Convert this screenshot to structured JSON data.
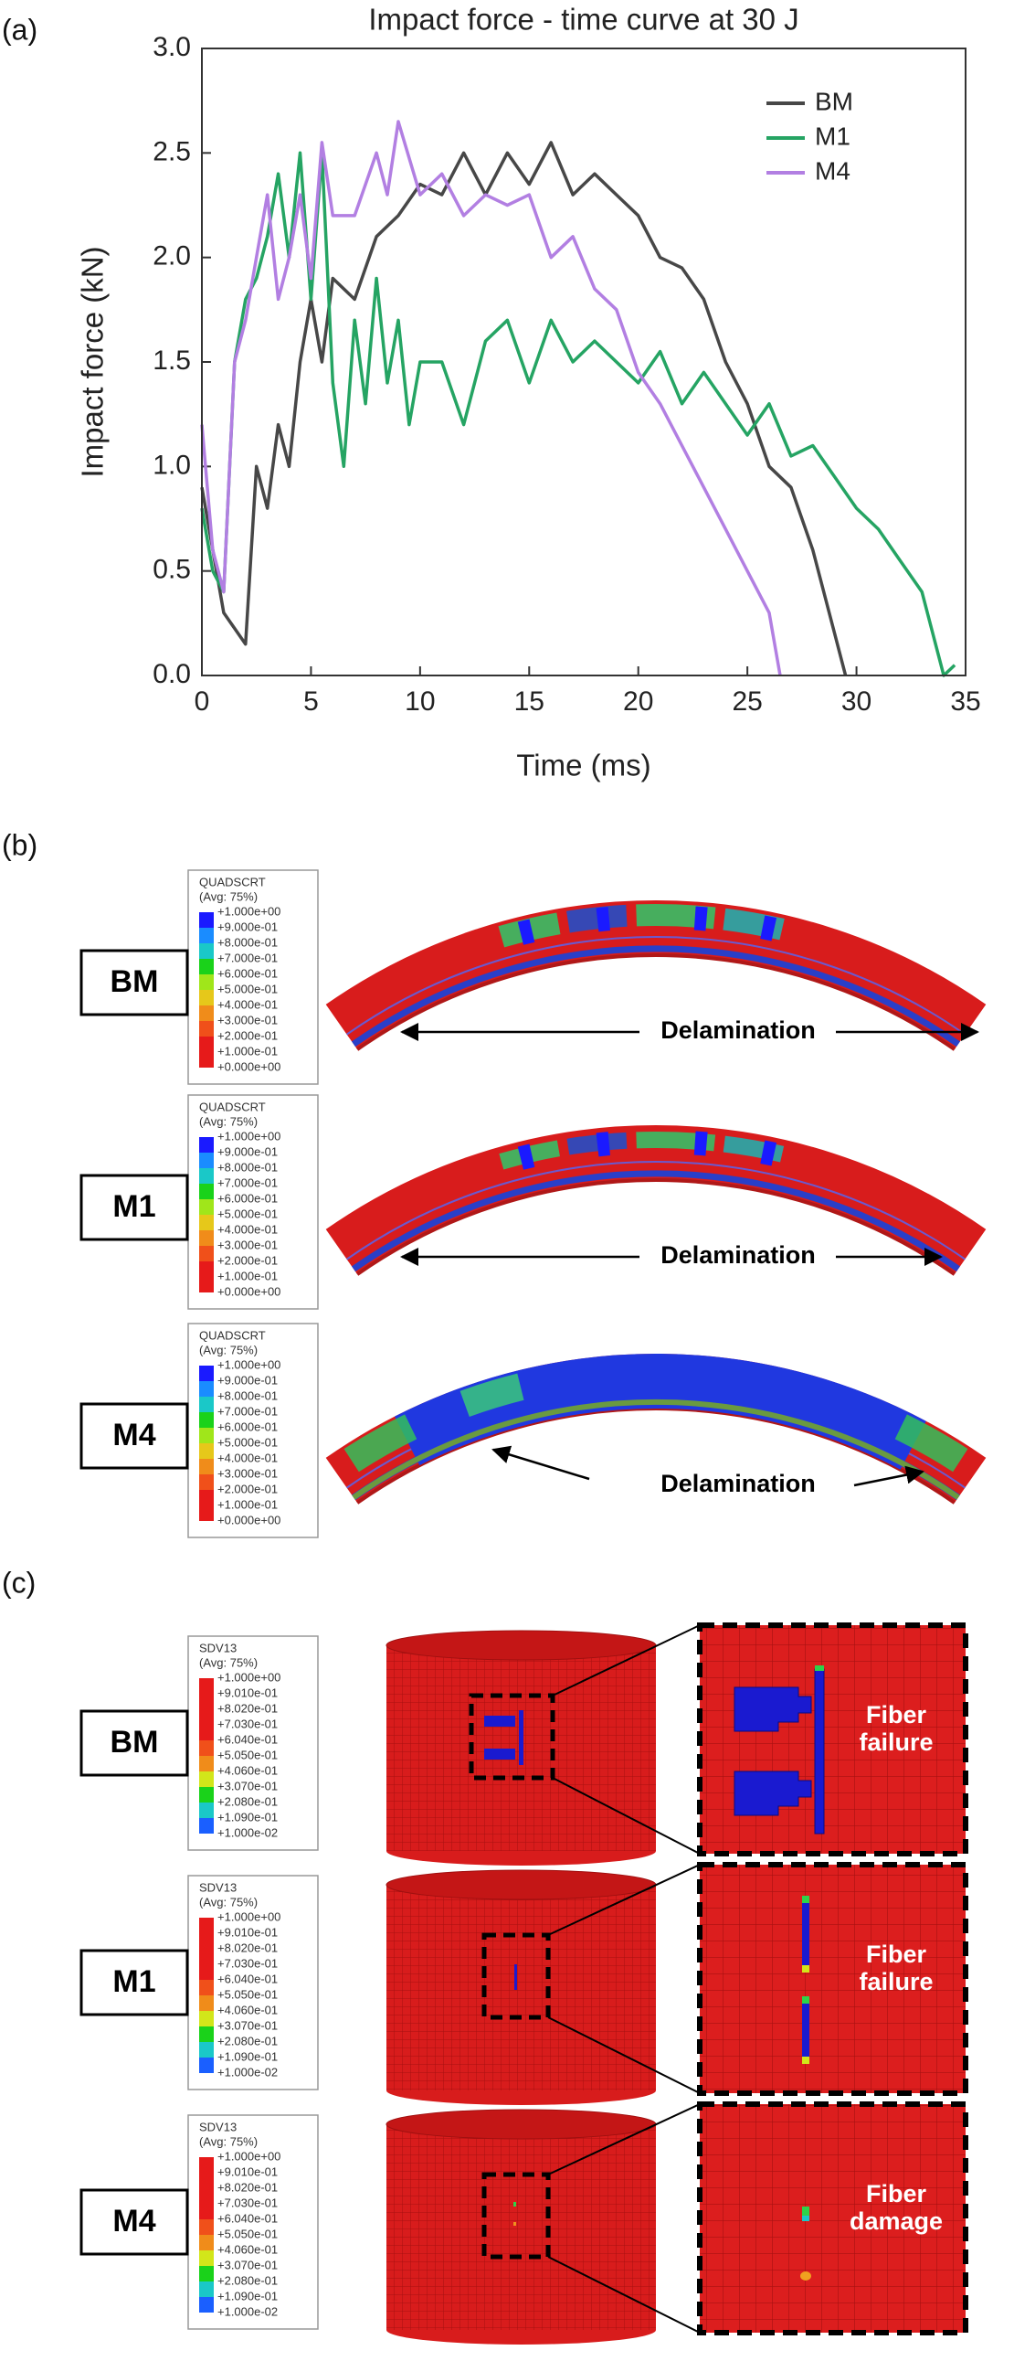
{
  "chart_data": {
    "type": "line",
    "title": "Impact force - time curve at 30 J",
    "x_label": "Time (ms)",
    "y_label": "Impact force (kN)",
    "xlim": [
      0,
      35
    ],
    "xticks": [
      0,
      5,
      10,
      15,
      20,
      25,
      30,
      35
    ],
    "ylim": [
      0,
      3
    ],
    "yticks": [
      {
        "value": 0,
        "label": "0.0"
      },
      0.5,
      {
        "value": 1,
        "label": "1.0"
      },
      1.5,
      {
        "value": 2,
        "label": "2.0"
      },
      2.5,
      {
        "value": 3,
        "label": "3.0"
      }
    ],
    "legend": "upper right",
    "series": [
      {
        "name": "BM",
        "color": "#474747",
        "x": [
          0,
          1,
          2,
          2.5,
          3,
          3.5,
          4,
          4.5,
          5,
          5.5,
          6,
          7,
          8,
          9,
          10,
          11,
          12,
          13,
          14,
          15,
          16,
          17,
          18,
          19,
          20,
          21,
          22,
          23,
          24,
          25,
          26,
          27,
          28,
          29,
          29.5
        ],
        "values": [
          0.9,
          0.3,
          0.15,
          1.0,
          0.8,
          1.2,
          1.0,
          1.5,
          1.8,
          1.5,
          1.9,
          1.8,
          2.1,
          2.2,
          2.35,
          2.3,
          2.5,
          2.3,
          2.5,
          2.35,
          2.55,
          2.3,
          2.4,
          2.3,
          2.2,
          2.0,
          1.95,
          1.8,
          1.5,
          1.3,
          1.0,
          0.9,
          0.6,
          0.2,
          0.0
        ]
      },
      {
        "name": "M1",
        "color": "#25a463",
        "x": [
          0,
          0.5,
          1,
          1.5,
          2,
          2.5,
          3,
          3.5,
          4,
          4.5,
          5,
          5.5,
          6,
          6.5,
          7,
          7.5,
          8,
          8.5,
          9,
          9.5,
          10,
          11,
          12,
          13,
          14,
          15,
          16,
          17,
          18,
          19,
          20,
          21,
          22,
          23,
          24,
          25,
          26,
          27,
          28,
          29,
          30,
          31,
          32,
          33,
          34,
          34.5
        ],
        "values": [
          0.8,
          0.5,
          0.4,
          1.5,
          1.8,
          1.9,
          2.1,
          2.4,
          2.0,
          2.5,
          1.8,
          2.5,
          1.4,
          1.0,
          1.7,
          1.3,
          1.9,
          1.4,
          1.7,
          1.2,
          1.5,
          1.5,
          1.2,
          1.6,
          1.7,
          1.4,
          1.7,
          1.5,
          1.6,
          1.5,
          1.4,
          1.55,
          1.3,
          1.45,
          1.3,
          1.15,
          1.3,
          1.05,
          1.1,
          0.95,
          0.8,
          0.7,
          0.55,
          0.4,
          0.0,
          0.05
        ]
      },
      {
        "name": "M4",
        "color": "#b27fe2",
        "x": [
          0,
          0.5,
          1,
          1.5,
          2,
          2.5,
          3,
          3.5,
          4,
          4.5,
          5,
          5.5,
          6,
          7,
          8,
          8.5,
          9,
          10,
          11,
          12,
          13,
          14,
          15,
          16,
          17,
          18,
          19,
          20,
          21,
          22,
          23,
          24,
          25,
          26,
          26.5
        ],
        "values": [
          1.2,
          0.6,
          0.4,
          1.5,
          1.7,
          2.0,
          2.3,
          1.8,
          2.0,
          2.3,
          1.9,
          2.55,
          2.2,
          2.2,
          2.5,
          2.3,
          2.65,
          2.3,
          2.4,
          2.2,
          2.3,
          2.25,
          2.3,
          2.0,
          2.1,
          1.85,
          1.75,
          1.45,
          1.3,
          1.1,
          0.9,
          0.7,
          0.5,
          0.3,
          0.0
        ]
      }
    ]
  },
  "panel_labels": [
    "(a)",
    "(b)",
    "(c)"
  ],
  "panel_b": {
    "legend": {
      "title": "QUADSCRT",
      "subtitle": "(Avg: 75%)",
      "levels": [
        "+1.000e+00",
        "+9.000e-01",
        "+8.000e-01",
        "+7.000e-01",
        "+6.000e-01",
        "+5.000e-01",
        "+4.000e-01",
        "+3.000e-01",
        "+2.000e-01",
        "+1.000e-01",
        "+0.000e+00"
      ]
    },
    "rows": [
      {
        "label": "BM",
        "annotation": "Delamination"
      },
      {
        "label": "M1",
        "annotation": "Delamination"
      },
      {
        "label": "M4",
        "annotation": "Delamination"
      }
    ]
  },
  "panel_c": {
    "legend": {
      "title": "SDV13",
      "subtitle": "(Avg: 75%)",
      "levels": [
        "+1.000e+00",
        "+9.010e-01",
        "+8.020e-01",
        "+7.030e-01",
        "+6.040e-01",
        "+5.050e-01",
        "+4.060e-01",
        "+3.070e-01",
        "+2.080e-01",
        "+1.090e-01",
        "+1.000e-02"
      ]
    },
    "rows": [
      {
        "label": "BM",
        "annotation": [
          "Fiber",
          "failure"
        ]
      },
      {
        "label": "M1",
        "annotation": [
          "Fiber",
          "failure"
        ]
      },
      {
        "label": "M4",
        "annotation": [
          "Fiber",
          "damage"
        ]
      }
    ]
  }
}
